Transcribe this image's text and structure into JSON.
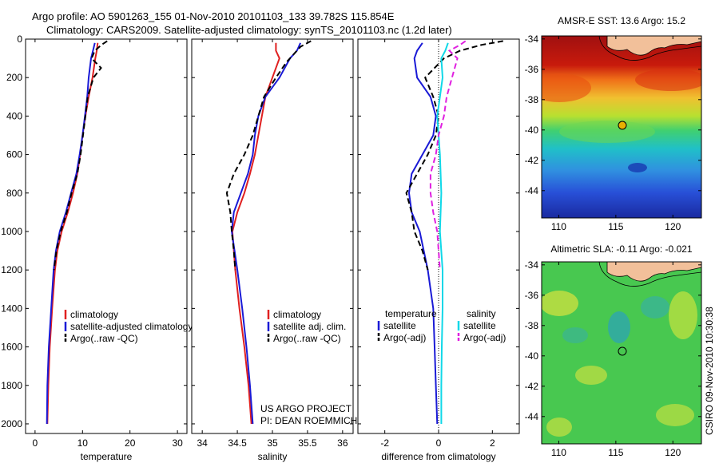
{
  "header": {
    "line1": "Argo profile: AO 5901263_155 01-Nov-2010 20101103_133 39.782S 115.854E",
    "line2": "Climatology: CARS2009. Satellite-adjusted climatology: synTS_20101103.nc (1.2d later)"
  },
  "footer": {
    "project_line1": "US ARGO PROJECT",
    "project_line2": "PI: DEAN ROEMMICH",
    "credit": "CSIRO 09-Nov-2010 10:30:38"
  },
  "colors": {
    "climatology": "#e02020",
    "satellite": "#1a1ad6",
    "argo": "#000000",
    "sal_satellite": "#10d8e8",
    "sal_argo": "#e020e0",
    "land": "#f2c09a"
  },
  "depth_ticks": [
    "0",
    "200",
    "400",
    "600",
    "800",
    "1000",
    "1200",
    "1400",
    "1600",
    "1800",
    "2000"
  ],
  "chart_data": [
    {
      "type": "line",
      "xlabel": "temperature",
      "xticks": [
        "0",
        "10",
        "20",
        "30"
      ],
      "xlim": [
        -2,
        32
      ],
      "ylim": [
        0,
        2050
      ],
      "legend": [
        "climatology",
        "satellite-adjusted climatology",
        "Argo(..raw -QC)"
      ],
      "series": [
        {
          "name": "climatology",
          "depth": [
            20,
            60,
            100,
            200,
            300,
            400,
            500,
            600,
            700,
            800,
            900,
            1000,
            1100,
            1200,
            1400,
            1600,
            1800,
            2000
          ],
          "values": [
            13.2,
            13.0,
            12.7,
            12.1,
            11.3,
            10.6,
            10.0,
            9.5,
            8.9,
            8.0,
            6.9,
            5.6,
            4.7,
            4.2,
            3.6,
            3.1,
            2.8,
            2.6
          ]
        },
        {
          "name": "satellite-adjusted climatology",
          "depth": [
            20,
            60,
            100,
            200,
            300,
            400,
            500,
            600,
            700,
            800,
            900,
            1000,
            1100,
            1200,
            1400,
            1600,
            1800,
            2000
          ],
          "values": [
            12.6,
            12.2,
            11.8,
            11.3,
            11.0,
            10.5,
            10.0,
            9.4,
            8.7,
            7.6,
            6.5,
            5.2,
            4.4,
            3.9,
            3.4,
            2.9,
            2.6,
            2.5
          ]
        },
        {
          "name": "Argo(..raw -QC)",
          "depth": [
            10,
            30,
            60,
            100,
            150,
            200,
            300,
            400,
            500,
            600,
            700,
            800,
            900,
            1000,
            1100,
            1200
          ],
          "values": [
            15.2,
            14.0,
            12.6,
            11.9,
            13.9,
            12.3,
            11.1,
            10.6,
            10.1,
            9.6,
            8.9,
            7.7,
            6.7,
            5.4,
            4.5,
            4.0
          ]
        }
      ]
    },
    {
      "type": "line",
      "xlabel": "salinity",
      "xticks": [
        "34",
        "34.5",
        "35",
        "35.5",
        "36"
      ],
      "xlim": [
        33.85,
        36.15
      ],
      "ylim": [
        0,
        2050
      ],
      "legend": [
        "climatology",
        "satellite adj. clim.",
        "Argo(..raw -QC)"
      ],
      "series": [
        {
          "name": "climatology",
          "depth": [
            20,
            60,
            100,
            200,
            300,
            400,
            500,
            600,
            700,
            800,
            900,
            1000,
            1200,
            1400,
            1600,
            1800,
            2000
          ],
          "values": [
            35.05,
            35.05,
            35.1,
            35.0,
            34.9,
            34.85,
            34.8,
            34.75,
            34.68,
            34.6,
            34.5,
            34.43,
            34.47,
            34.53,
            34.6,
            34.66,
            34.7
          ]
        },
        {
          "name": "satellite adj. clim.",
          "depth": [
            20,
            60,
            100,
            200,
            300,
            400,
            500,
            600,
            700,
            800,
            900,
            1000,
            1200,
            1400,
            1600,
            1800,
            2000
          ],
          "values": [
            35.4,
            35.35,
            35.25,
            35.1,
            34.9,
            34.8,
            34.75,
            34.72,
            34.65,
            34.55,
            34.45,
            34.42,
            34.5,
            34.57,
            34.63,
            34.68,
            34.72
          ]
        },
        {
          "name": "Argo(..raw -QC)",
          "depth": [
            10,
            40,
            80,
            120,
            200,
            300,
            400,
            500,
            600,
            700,
            800,
            900,
            1000,
            1100,
            1200
          ],
          "values": [
            35.55,
            35.4,
            35.3,
            35.2,
            35.05,
            34.88,
            34.8,
            34.72,
            34.6,
            34.45,
            34.35,
            34.4,
            34.42,
            34.45,
            34.47
          ]
        }
      ]
    },
    {
      "type": "line",
      "xlabel": "difference from climatology",
      "xticks": [
        "-2",
        "0",
        "2"
      ],
      "xlim": [
        -3,
        3
      ],
      "ylim": [
        0,
        2050
      ],
      "legend_titles": [
        "temperature",
        "salinity"
      ],
      "legend": [
        "satellite",
        "Argo(-adj)",
        "satellite",
        "Argo(-adj)"
      ],
      "series": [
        {
          "name": "satellite",
          "depth": [
            20,
            60,
            100,
            200,
            300,
            400,
            500,
            600,
            700,
            800,
            900,
            1000,
            1200,
            1400,
            1600,
            1800,
            2000
          ],
          "values": [
            -0.6,
            -0.8,
            -0.9,
            -0.8,
            -0.3,
            -0.1,
            -0.2,
            -0.6,
            -1.0,
            -1.1,
            -1.0,
            -0.7,
            -0.4,
            -0.2,
            -0.15,
            -0.1,
            -0.05
          ]
        },
        {
          "name": "Argo(-adj)",
          "depth": [
            10,
            30,
            60,
            100,
            200,
            300,
            400,
            500,
            600,
            700,
            800,
            900,
            1000,
            1100,
            1200
          ],
          "values": [
            2.4,
            1.6,
            0.8,
            0.2,
            -0.5,
            -0.2,
            0.0,
            -0.1,
            -0.4,
            -0.8,
            -1.2,
            -1.0,
            -0.9,
            -0.6,
            -0.4
          ]
        },
        {
          "name": "satellite",
          "depth": [
            20,
            60,
            100,
            200,
            300,
            400,
            500,
            600,
            800,
            1000,
            1200,
            1400,
            1600,
            1800,
            2000
          ],
          "values": [
            0.35,
            0.25,
            0.1,
            0.15,
            0.05,
            -0.05,
            0.0,
            0.05,
            0.1,
            0.05,
            0.15,
            0.15,
            0.12,
            0.1,
            0.1
          ]
        },
        {
          "name": "Argo(-adj)",
          "depth": [
            10,
            30,
            60,
            100,
            200,
            300,
            400,
            500,
            600,
            700,
            800,
            900,
            1000,
            1100,
            1200
          ],
          "values": [
            1.0,
            0.8,
            0.4,
            0.7,
            0.5,
            0.3,
            0.2,
            0.0,
            -0.1,
            -0.3,
            -0.3,
            -0.2,
            -0.05,
            0.0,
            0.05
          ]
        }
      ]
    }
  ],
  "maps": [
    {
      "title": "AMSR-E SST: 13.6 Argo: 15.2",
      "yticks": [
        "-34",
        "-36",
        "-38",
        "-40",
        "-42",
        "-44"
      ],
      "xticks": [
        "110",
        "115",
        "120"
      ],
      "lat_range": [
        -45.8,
        -33.8
      ],
      "lon_range": [
        108.5,
        122.5
      ],
      "float_position": [
        115.854,
        -39.782
      ]
    },
    {
      "title": "Altimetric SLA: -0.11 Argo: -0.021",
      "yticks": [
        "-34",
        "-36",
        "-38",
        "-40",
        "-42",
        "-44"
      ],
      "xticks": [
        "110",
        "115",
        "120"
      ],
      "lat_range": [
        -45.8,
        -33.8
      ],
      "lon_range": [
        108.5,
        122.5
      ],
      "float_position": [
        115.854,
        -39.782
      ]
    }
  ]
}
